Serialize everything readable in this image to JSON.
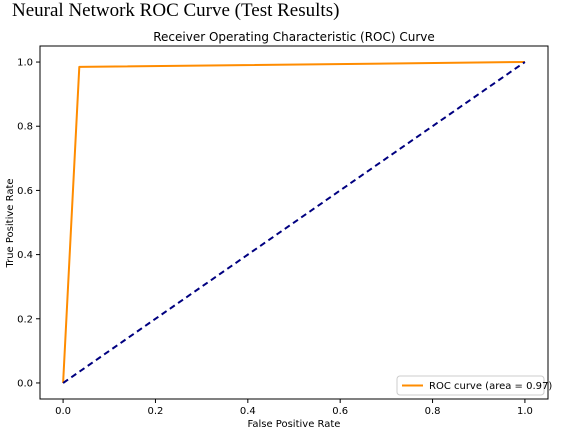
{
  "page": {
    "heading": "Neural Network ROC Curve (Test Results)"
  },
  "chart_data": {
    "type": "line",
    "title": "Receiver Operating Characteristic (ROC) Curve",
    "xlabel": "False Positive Rate",
    "ylabel": "True Positive Rate",
    "xlim": [
      -0.05,
      1.05
    ],
    "ylim": [
      -0.05,
      1.05
    ],
    "xticks": [
      0.0,
      0.2,
      0.4,
      0.6,
      0.8,
      1.0
    ],
    "yticks": [
      0.0,
      0.2,
      0.4,
      0.6,
      0.8,
      1.0
    ],
    "xtick_labels": [
      "0.0",
      "0.2",
      "0.4",
      "0.6",
      "0.8",
      "1.0"
    ],
    "ytick_labels": [
      "0.0",
      "0.2",
      "0.4",
      "0.6",
      "0.8",
      "1.0"
    ],
    "grid": false,
    "legend_position": "lower-right",
    "series": [
      {
        "name": "ROC curve (area = 0.97)",
        "color": "#ff8c00",
        "style": "solid",
        "x": [
          0.0,
          0.035,
          1.0
        ],
        "y": [
          0.0,
          0.985,
          1.0
        ]
      },
      {
        "color": "#000080",
        "style": "dashed",
        "x": [
          0.0,
          1.0
        ],
        "y": [
          0.0,
          1.0
        ]
      }
    ]
  }
}
